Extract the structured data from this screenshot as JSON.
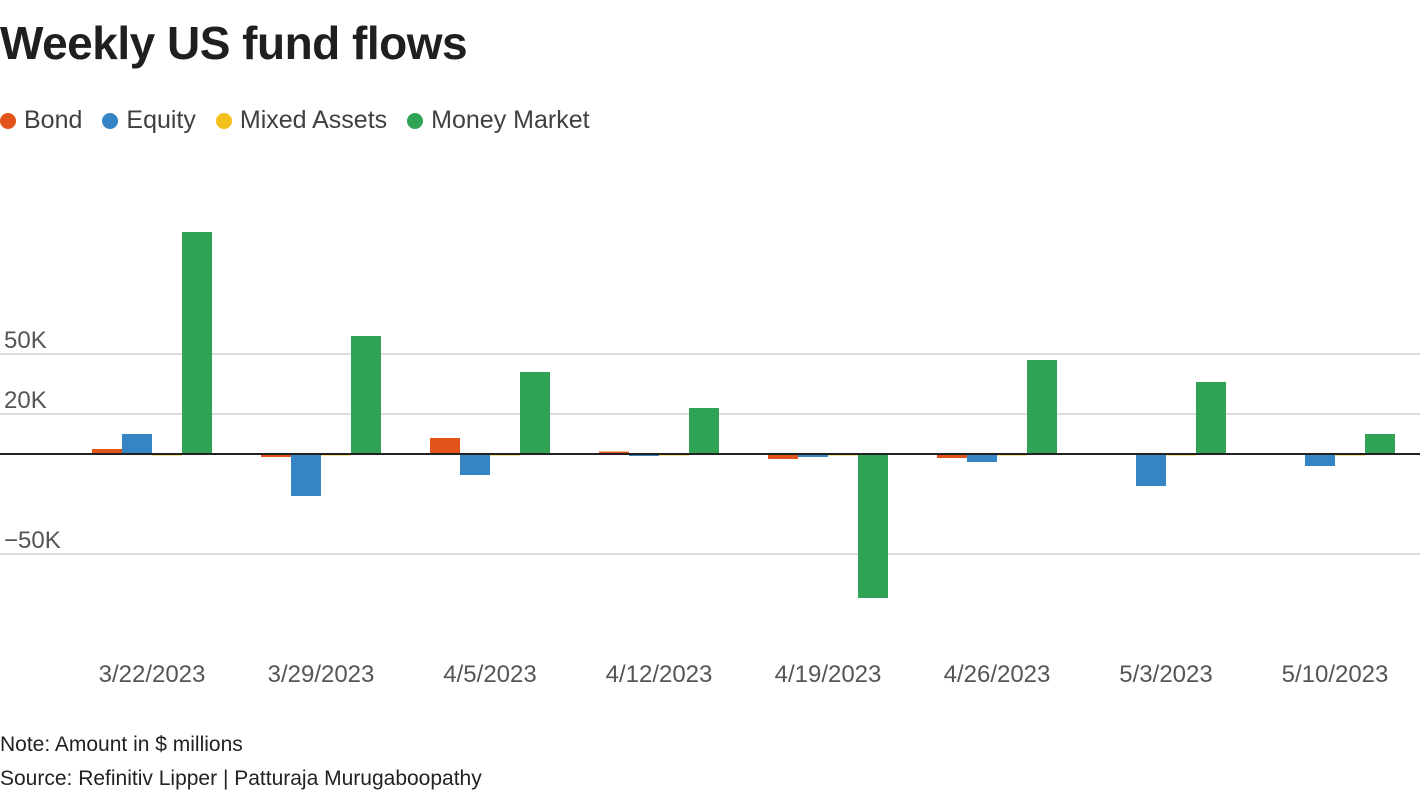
{
  "title": "Weekly US fund flows",
  "note": "Note: Amount in $ millions",
  "source": "Source: Refinitiv Lipper | Patturaja Murugaboopathy",
  "legend": [
    {
      "label": "Bond",
      "color": "#e2541a"
    },
    {
      "label": "Equity",
      "color": "#3584c3"
    },
    {
      "label": "Mixed Assets",
      "color": "#f2c01e"
    },
    {
      "label": "Money Market",
      "color": "#31a354"
    }
  ],
  "chart_data": {
    "type": "bar",
    "categories": [
      "3/22/2023",
      "3/29/2023",
      "4/5/2023",
      "4/12/2023",
      "4/19/2023",
      "4/26/2023",
      "5/3/2023",
      "5/10/2023"
    ],
    "series": [
      {
        "name": "Bond",
        "color": "#e2541a",
        "values": [
          2500,
          -1500,
          8000,
          1200,
          -2500,
          -2000,
          0,
          0
        ]
      },
      {
        "name": "Equity",
        "color": "#3584c3",
        "values": [
          10000,
          -21000,
          -10500,
          -1000,
          -1500,
          -4000,
          -16000,
          -6000
        ]
      },
      {
        "name": "Mixed Assets",
        "color": "#f2c01e",
        "values": [
          -300,
          -300,
          -300,
          -300,
          -300,
          -300,
          -300,
          -300
        ]
      },
      {
        "name": "Money Market",
        "color": "#31a354",
        "values": [
          111000,
          59000,
          41000,
          23000,
          -72000,
          47000,
          36000,
          10000
        ]
      }
    ],
    "yticks": [
      {
        "value": 50000,
        "label": "50K"
      },
      {
        "value": 20000,
        "label": "20K"
      },
      {
        "value": -50000,
        "label": "−50K"
      }
    ],
    "ylim": [
      -80000,
      135000
    ],
    "grid": true,
    "legend_position": "top-left",
    "xlabel": "",
    "ylabel": ""
  }
}
